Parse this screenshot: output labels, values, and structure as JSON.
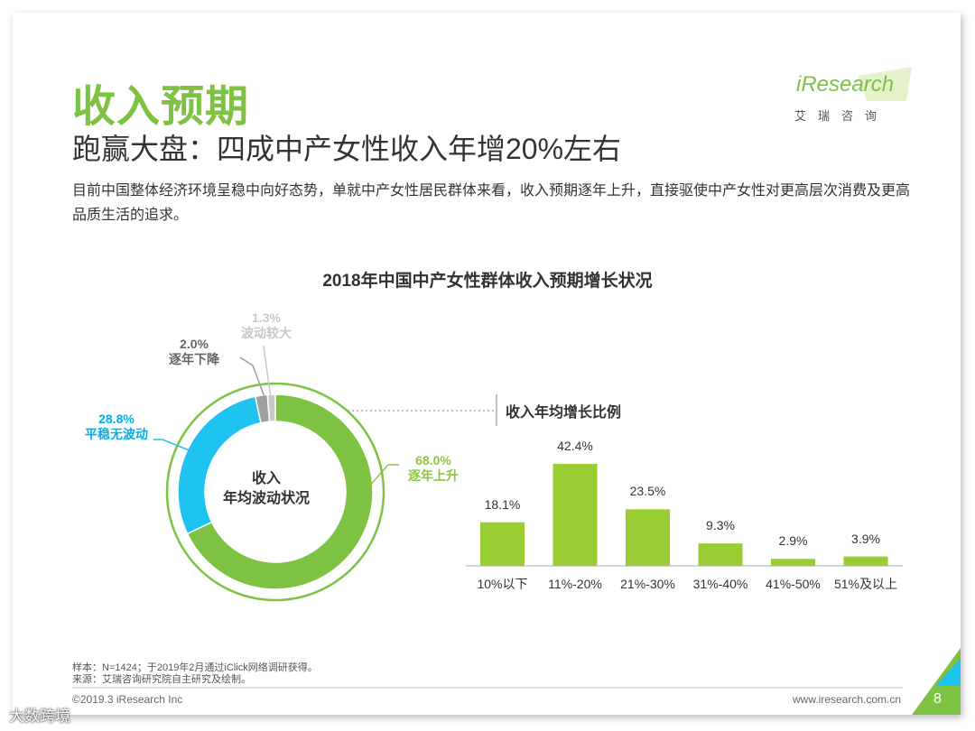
{
  "slide": {
    "title": "收入预期",
    "subtitle": "跑赢大盘：四成中产女性收入年增20%左右",
    "description": "目前中国整体经济环境呈稳中向好态势，单就中产女性居民群体来看，收入预期逐年上升，直接驱使中产女性对更高层次消费及更高品质生活的追求。"
  },
  "logo": {
    "name": "iResearch",
    "cn": "艾瑞咨询"
  },
  "colors": {
    "green": "#7dc242",
    "bar_green": "#9acd32",
    "blue": "#1ec3f0",
    "gray": "#9e9e9e",
    "light_gray": "#c8c8c8",
    "label_green": "#8cc63f",
    "label_blue": "#00b0e6"
  },
  "chart_data": [
    {
      "type": "pie",
      "title": "2018年中国中产女性群体收入预期增长状况",
      "center_label": [
        "收入",
        "年均波动状况"
      ],
      "slices": [
        {
          "name": "逐年上升",
          "value": 68.0,
          "label": "68.0%"
        },
        {
          "name": "平稳无波动",
          "value": 28.8,
          "label": "28.8%"
        },
        {
          "name": "逐年下降",
          "value": 2.0,
          "label": "2.0%"
        },
        {
          "name": "波动较大",
          "value": 1.3,
          "label": "1.3%"
        }
      ]
    },
    {
      "type": "bar",
      "title": "收入年均增长比例",
      "categories": [
        "10%以下",
        "11%-20%",
        "21%-30%",
        "31%-40%",
        "41%-50%",
        "51%及以上"
      ],
      "values": [
        18.1,
        42.4,
        23.5,
        9.3,
        2.9,
        3.9
      ],
      "labels": [
        "18.1%",
        "42.4%",
        "23.5%",
        "9.3%",
        "2.9%",
        "3.9%"
      ],
      "ylim": [
        0,
        45
      ]
    }
  ],
  "footer": {
    "note1": "样本：N=1424；于2019年2月通过iClick网络调研获得。",
    "note2": "来源：艾瑞咨询研究院自主研究及绘制。",
    "copyright": "©2019.3 iResearch Inc",
    "website": "www.iresearch.com.cn",
    "page": "8"
  },
  "watermark": "大数跨境"
}
